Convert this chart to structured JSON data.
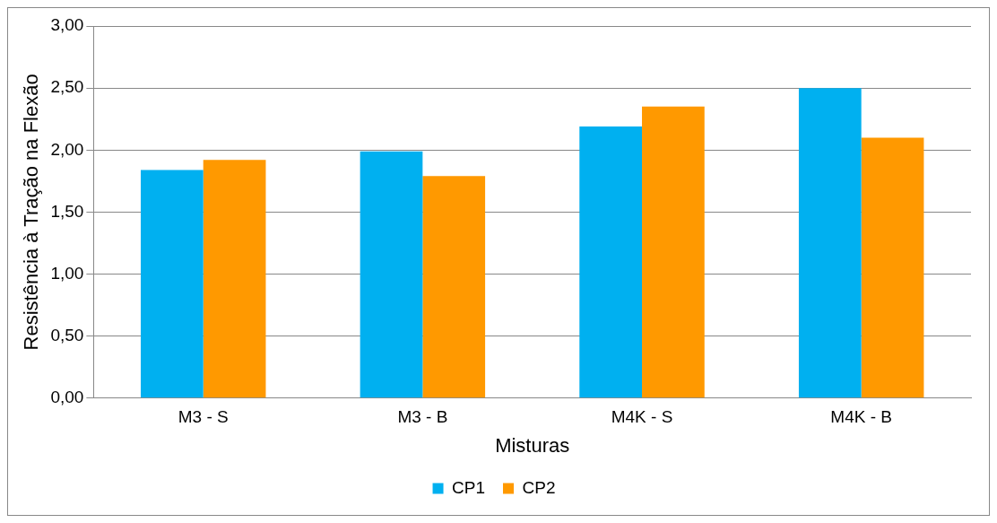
{
  "chart_data": {
    "type": "bar",
    "xlabel": "Misturas",
    "ylabel": "Resistência à Tração na Flexão",
    "categories": [
      "M3 - S",
      "M3 - B",
      "M4K - S",
      "M4K - B"
    ],
    "series": [
      {
        "name": "CP1",
        "color": "#00b0f0",
        "values": [
          1.84,
          1.99,
          2.19,
          2.5
        ]
      },
      {
        "name": "CP2",
        "color": "#ff9900",
        "values": [
          1.92,
          1.79,
          2.35,
          2.1
        ]
      }
    ],
    "ylim": [
      0,
      3
    ],
    "yticks": [
      {
        "value": 0,
        "label": "0,00"
      },
      {
        "value": 0.5,
        "label": "0,50"
      },
      {
        "value": 1,
        "label": "1,00"
      },
      {
        "value": 1.5,
        "label": "1,50"
      },
      {
        "value": 2,
        "label": "2,00"
      },
      {
        "value": 2.5,
        "label": "2,50"
      },
      {
        "value": 3,
        "label": "3,00"
      }
    ],
    "grid": "y",
    "legend": "bottom"
  }
}
